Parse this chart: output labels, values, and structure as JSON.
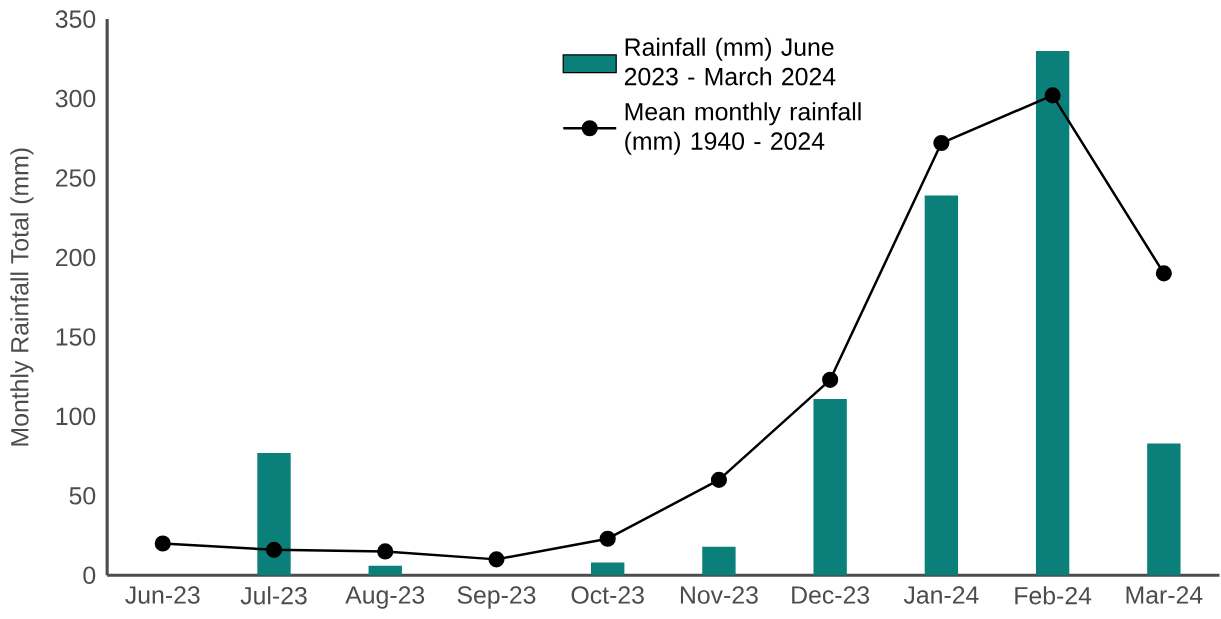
{
  "chart_data": {
    "type": "bar",
    "ylabel": "Monthly Rainfall Total (mm)",
    "categories": [
      "Jun-23",
      "Jul-23",
      "Aug-23",
      "Sep-23",
      "Oct-23",
      "Nov-23",
      "Dec-23",
      "Jan-24",
      "Feb-24",
      "Mar-24"
    ],
    "series": [
      {
        "name": "Rainfall (mm) June 2023 - March 2024",
        "color": "#0b7f7a",
        "values": [
          0,
          77,
          6,
          0,
          8,
          18,
          111,
          239,
          330,
          83
        ]
      },
      {
        "name": "Mean monthly rainfall (mm) 1940 - 2024",
        "type": "line",
        "color": "#000000",
        "marker": "circle",
        "values": [
          20,
          16,
          15,
          10,
          23,
          60,
          123,
          272,
          302,
          190
        ]
      }
    ],
    "ylim": [
      0,
      350
    ],
    "yticks": [
      0,
      50,
      100,
      150,
      200,
      250,
      300,
      350
    ],
    "legend": "top"
  }
}
